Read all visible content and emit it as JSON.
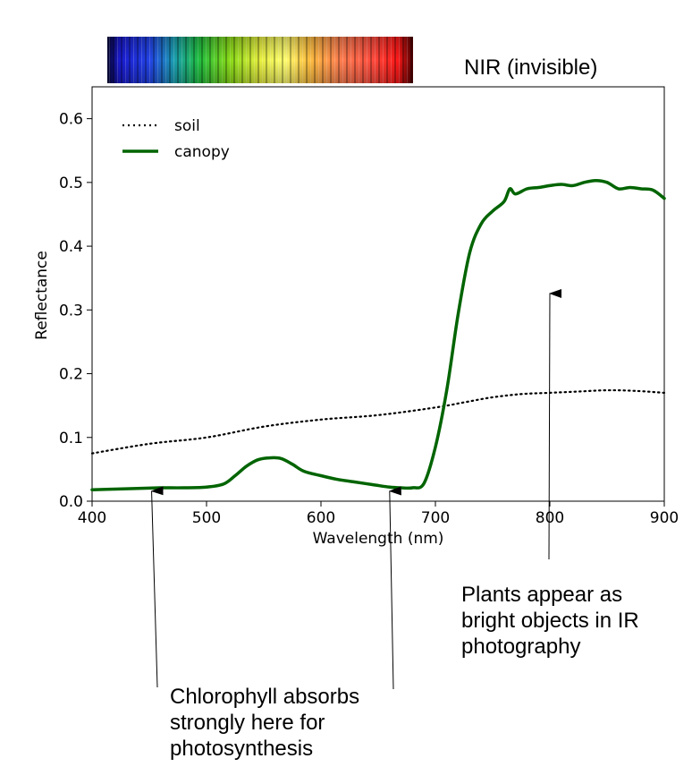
{
  "chart_data": {
    "type": "line",
    "xlabel": "Wavelength (nm)",
    "ylabel": "Reflectance",
    "xlim": [
      400,
      900
    ],
    "ylim": [
      0,
      0.65
    ],
    "x_ticks": [
      400,
      500,
      600,
      700,
      800,
      900
    ],
    "y_ticks": [
      0.0,
      0.1,
      0.2,
      0.3,
      0.4,
      0.5,
      0.6
    ],
    "grid": false,
    "legend_position": "top-left",
    "series": [
      {
        "name": "soil",
        "style": "dotted",
        "color": "#000000",
        "x": [
          400,
          450,
          500,
          550,
          600,
          650,
          700,
          725,
          750,
          775,
          800,
          825,
          850,
          875,
          900
        ],
        "y": [
          0.075,
          0.09,
          0.1,
          0.117,
          0.128,
          0.135,
          0.147,
          0.155,
          0.163,
          0.168,
          0.17,
          0.172,
          0.174,
          0.173,
          0.17
        ]
      },
      {
        "name": "canopy",
        "style": "solid",
        "color": "#006400",
        "x": [
          400,
          420,
          440,
          460,
          480,
          500,
          515,
          525,
          535,
          545,
          555,
          565,
          575,
          585,
          600,
          615,
          630,
          645,
          660,
          670,
          680,
          690,
          700,
          710,
          720,
          730,
          740,
          750,
          760,
          765,
          770,
          780,
          790,
          800,
          810,
          820,
          830,
          840,
          850,
          860,
          870,
          880,
          890,
          900
        ],
        "y": [
          0.018,
          0.019,
          0.02,
          0.021,
          0.021,
          0.022,
          0.027,
          0.04,
          0.055,
          0.065,
          0.068,
          0.067,
          0.058,
          0.047,
          0.04,
          0.034,
          0.03,
          0.026,
          0.022,
          0.021,
          0.021,
          0.028,
          0.085,
          0.175,
          0.295,
          0.39,
          0.435,
          0.455,
          0.47,
          0.49,
          0.482,
          0.49,
          0.492,
          0.495,
          0.497,
          0.495,
          0.5,
          0.503,
          0.5,
          0.49,
          0.492,
          0.49,
          0.488,
          0.475
        ]
      }
    ]
  },
  "labels": {
    "nir": "NIR (invisible)",
    "plants_note": "Plants appear as\nbright objects in IR\nphotography",
    "chlorophyll_note": "Chlorophyll absorbs\nstrongly here for\nphotosynthesis"
  },
  "annotations": [
    {
      "name": "arrow-chlorophyll-blue",
      "target": [
        452,
        0.02
      ],
      "text_ref": "chlorophyll_note"
    },
    {
      "name": "arrow-chlorophyll-red",
      "target": [
        660,
        0.02
      ],
      "text_ref": "chlorophyll_note"
    },
    {
      "name": "arrow-nir-plateau",
      "target": [
        800,
        0.33
      ],
      "text_ref": "plants_note"
    }
  ],
  "colors": {
    "canopy": "#006400",
    "soil": "#000000",
    "spectrum_band": [
      "#1010c8",
      "#2060e0",
      "#10a0a0",
      "#20c020",
      "#a0e010",
      "#ffff40",
      "#ffb030",
      "#ff6040",
      "#ff2020"
    ]
  }
}
